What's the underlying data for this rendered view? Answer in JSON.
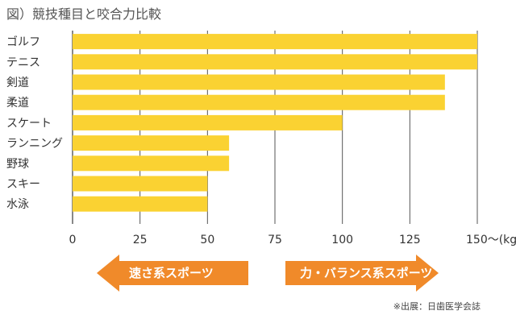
{
  "chart_data": {
    "type": "bar",
    "orientation": "horizontal",
    "title": "図）競技種目と咬合力比較",
    "categories": [
      "ゴルフ",
      "テニス",
      "剣道",
      "柔道",
      "スケート",
      "ランニング",
      "野球",
      "スキー",
      "水泳"
    ],
    "values": [
      150,
      150,
      138,
      138,
      100,
      58,
      58,
      50,
      50
    ],
    "xticks": [
      0,
      25,
      50,
      75,
      100,
      125,
      150
    ],
    "xlim": [
      0,
      150
    ],
    "x_unit_suffix": "〜(kg)",
    "grid": true,
    "legend": "none"
  },
  "annotations": {
    "left_arrow": "速さ系スポーツ",
    "right_arrow": "力・バランス系スポーツ"
  },
  "source": "※出展：日歯医学会誌",
  "colors": {
    "bar": "#FAD232",
    "arrow": "#F08A2A",
    "grid": "#555555",
    "text": "#333333"
  }
}
